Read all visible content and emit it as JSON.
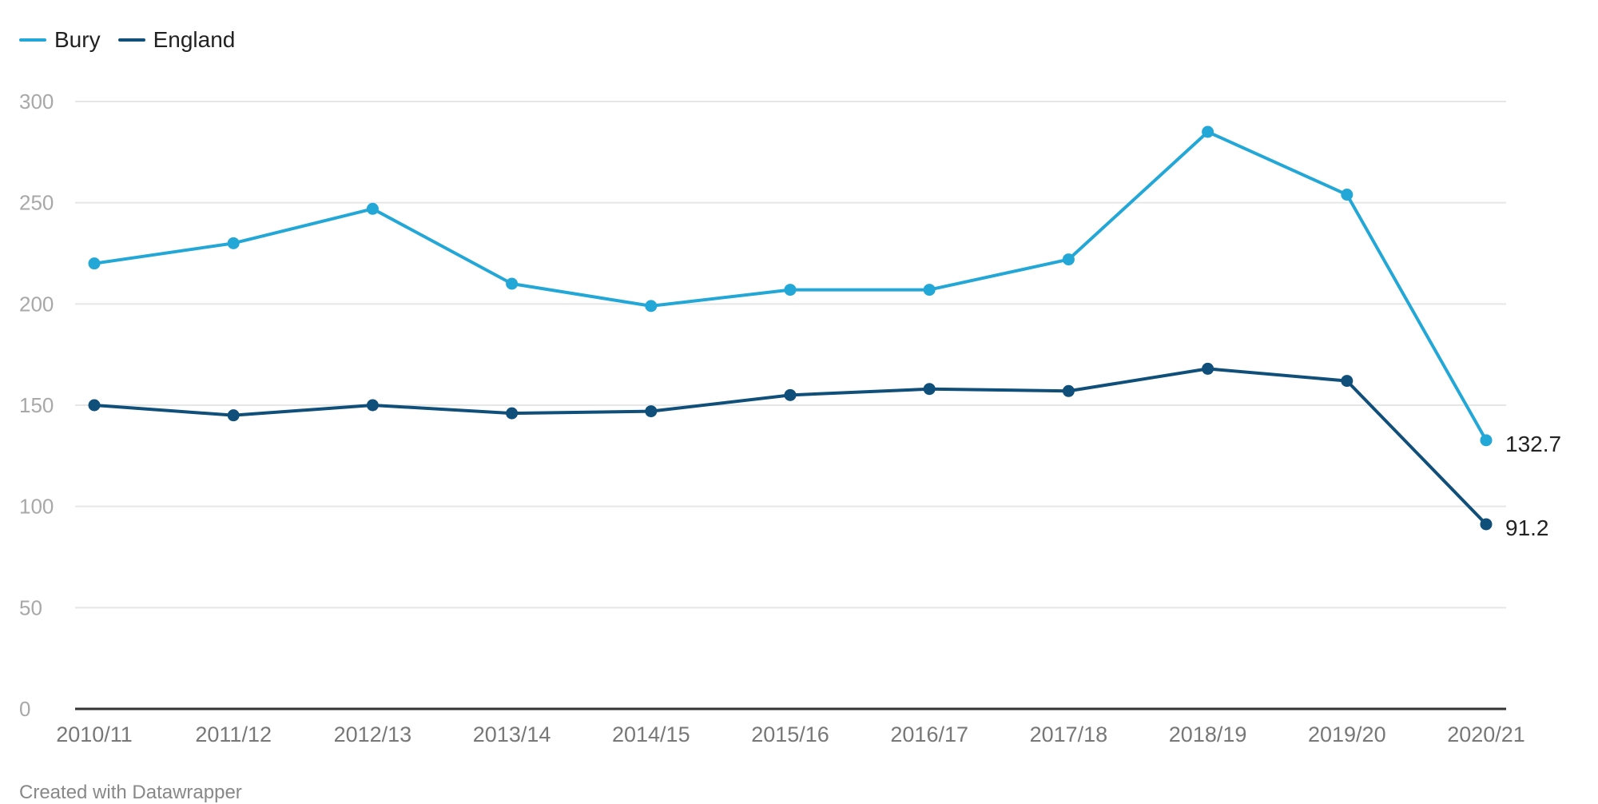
{
  "chart_data": {
    "type": "line",
    "title": "",
    "xlabel": "",
    "ylabel": "",
    "categories": [
      "2010/11",
      "2011/12",
      "2012/13",
      "2013/14",
      "2014/15",
      "2015/16",
      "2016/17",
      "2017/18",
      "2018/19",
      "2019/20",
      "2020/21"
    ],
    "series": [
      {
        "name": "Bury",
        "color": "#22a7d7",
        "values": [
          220,
          230,
          247,
          210,
          199,
          207,
          207,
          222,
          285,
          254,
          132.7
        ]
      },
      {
        "name": "England",
        "color": "#0f4f7a",
        "values": [
          150,
          145,
          150,
          146,
          147,
          155,
          158,
          157,
          168,
          162,
          91.2
        ]
      }
    ],
    "end_labels": [
      "132.7",
      "91.2"
    ],
    "y_ticks": [
      0,
      50,
      100,
      150,
      200,
      250,
      300
    ],
    "ylim": [
      0,
      300
    ],
    "grid": true,
    "legend_position": "top-left"
  },
  "footer_text": "Created with Datawrapper"
}
